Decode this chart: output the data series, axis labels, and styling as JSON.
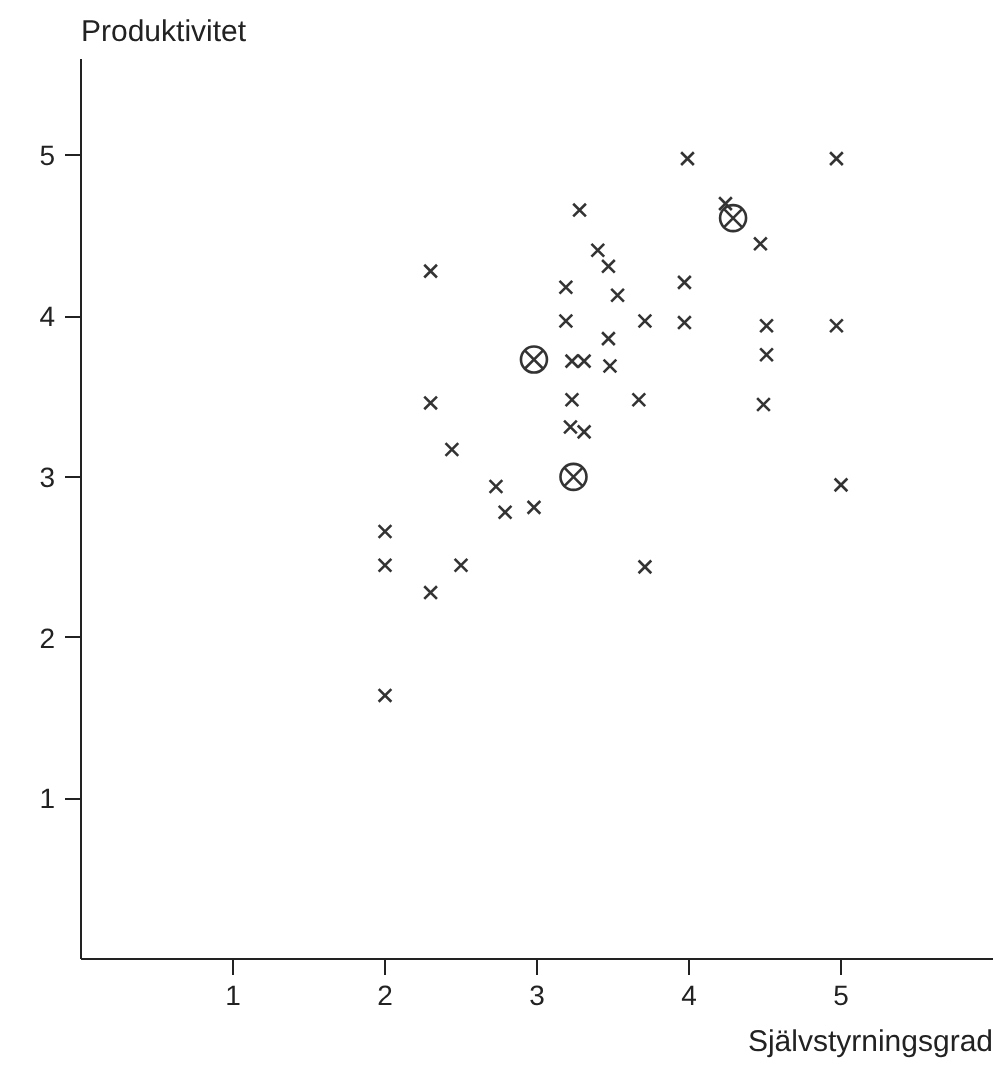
{
  "chart_data": {
    "type": "scatter",
    "xlabel": "Självstyrningsgrad",
    "ylabel": "Produktivitet",
    "xlim": [
      0,
      6.0
    ],
    "ylim": [
      0,
      5.6
    ],
    "xticks": [
      1,
      2,
      3,
      4,
      5
    ],
    "yticks": [
      1,
      2,
      3,
      4,
      5
    ],
    "grid": false,
    "series": [
      {
        "color": "#333333",
        "marker": "cross",
        "x": [
          2.0,
          2.0,
          2.0,
          2.3,
          2.3,
          2.3,
          2.44,
          2.5,
          2.73,
          2.79,
          2.98,
          3.19,
          3.19,
          3.23,
          3.31,
          3.23,
          3.22,
          3.31,
          3.28,
          3.4,
          3.47,
          3.53,
          3.47,
          3.48,
          3.67,
          3.71,
          3.71,
          3.99,
          3.97,
          3.97,
          4.24,
          4.47,
          4.51,
          4.51,
          4.49,
          4.97,
          4.97,
          5.0
        ],
        "values": [
          2.66,
          2.45,
          1.64,
          4.28,
          3.46,
          2.28,
          3.17,
          2.45,
          2.94,
          2.78,
          2.81,
          4.18,
          3.97,
          3.72,
          3.72,
          3.48,
          3.31,
          3.28,
          4.66,
          4.41,
          4.31,
          4.13,
          3.86,
          3.69,
          3.48,
          2.44,
          3.97,
          4.98,
          4.21,
          3.96,
          4.7,
          4.45,
          3.94,
          3.76,
          3.45,
          4.98,
          3.94,
          2.95
        ]
      },
      {
        "color": "#333333",
        "x": [
          2.98,
          3.24,
          4.29
        ],
        "values": [
          3.73,
          3.0,
          4.61
        ]
      }
    ]
  }
}
